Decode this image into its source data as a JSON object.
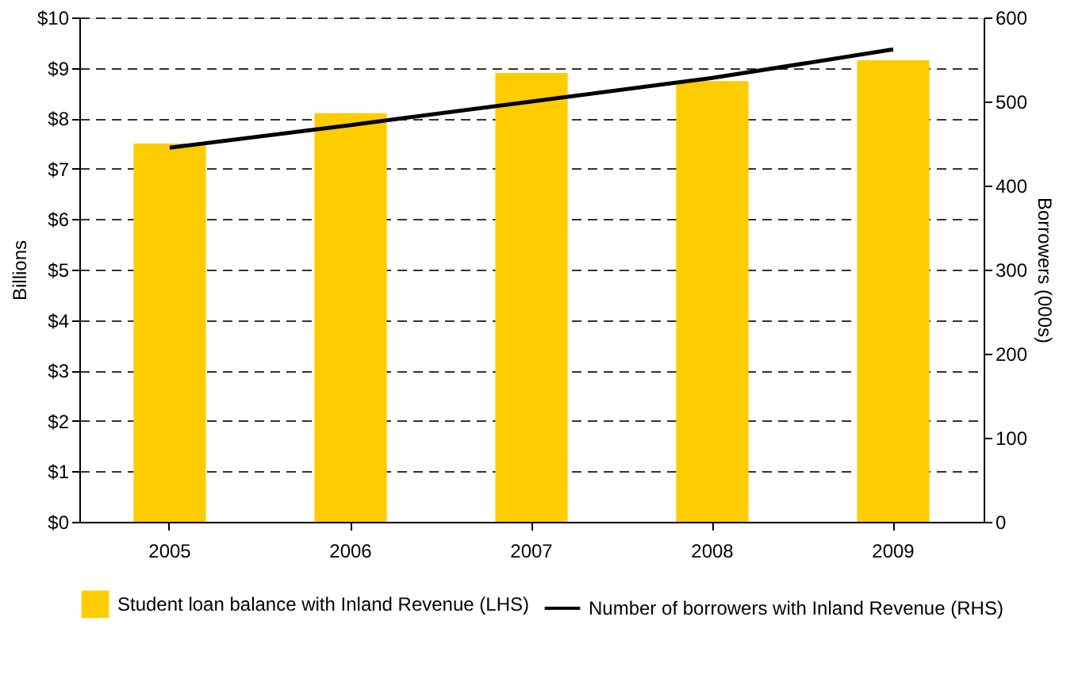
{
  "chart_data": {
    "type": "bar",
    "ylabel": "Billions",
    "y2label": "Borrowers (000s)",
    "categories": [
      "2005",
      "2006",
      "2007",
      "2008",
      "2009"
    ],
    "series": [
      {
        "name": "Student loan balance with Inland Revenue (LHS)",
        "color": "#ffcc00",
        "values": [
          7.5,
          8.1,
          8.9,
          8.74,
          9.15
        ]
      },
      {
        "name": "Number of borrowers with Inland Revenue (RHS)",
        "type": "line",
        "axis": "y2",
        "color": "#000000",
        "values": [
          445,
          472,
          500,
          528,
          562
        ]
      }
    ],
    "ylim": [
      0,
      10
    ],
    "yticks": [
      {
        "value": 0,
        "label": "$0"
      },
      {
        "value": 1,
        "label": "$1"
      },
      {
        "value": 2,
        "label": "$2"
      },
      {
        "value": 3,
        "label": "$3"
      },
      {
        "value": 4,
        "label": "$4"
      },
      {
        "value": 5,
        "label": "$5"
      },
      {
        "value": 6,
        "label": "$6"
      },
      {
        "value": 7,
        "label": "$7"
      },
      {
        "value": 8,
        "label": "$8"
      },
      {
        "value": 9,
        "label": "$9"
      },
      {
        "value": 10,
        "label": "$10"
      }
    ],
    "y2lim": [
      0,
      600
    ],
    "y2ticks": [
      0,
      100,
      200,
      300,
      400,
      500,
      600
    ],
    "grid": "y",
    "legend": "bottom"
  }
}
